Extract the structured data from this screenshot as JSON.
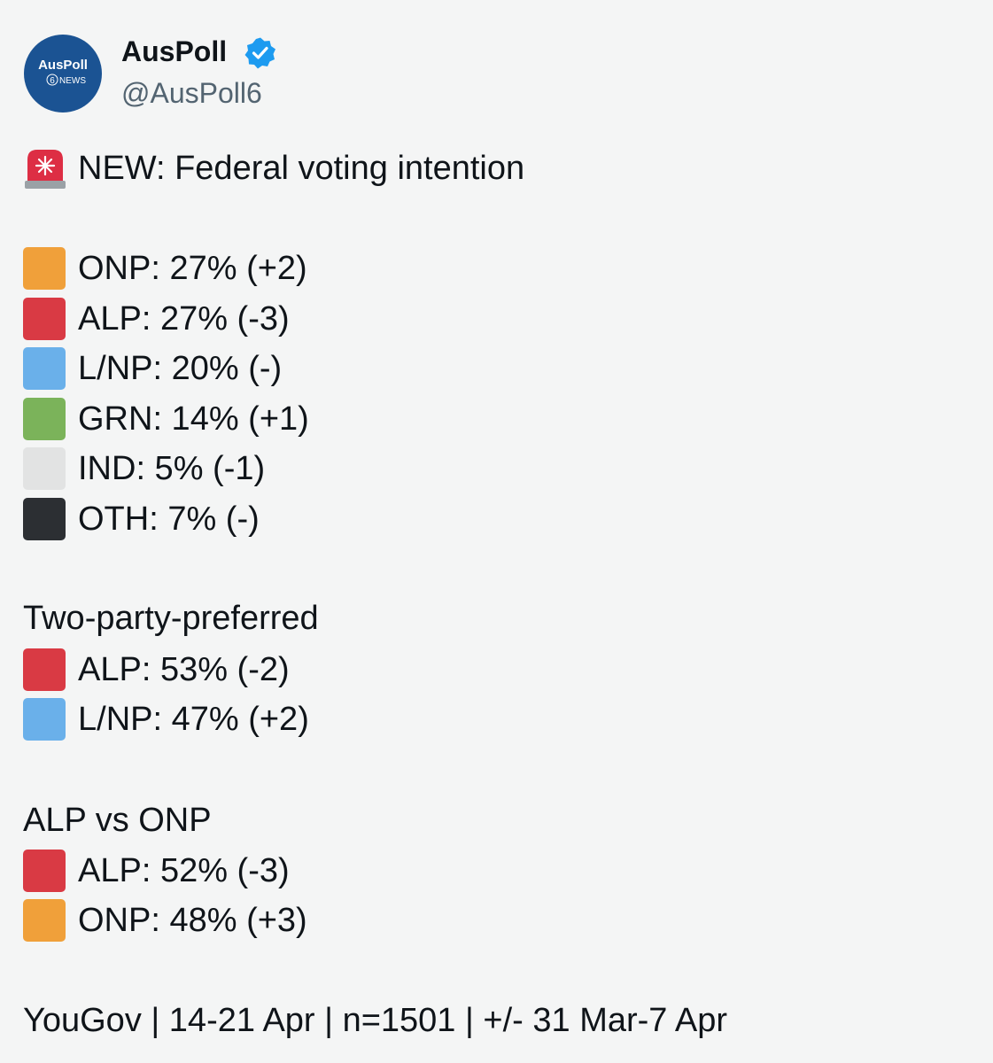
{
  "avatar": {
    "name": "AusPoll",
    "badge": "6",
    "sub": "NEWS"
  },
  "header": {
    "name": "AusPoll",
    "handle": "@AusPoll6"
  },
  "post": {
    "headline": "NEW: Federal voting intention",
    "groups": [
      {
        "items": [
          {
            "text": "ONP: 27% (+2)",
            "color": "#f0a03a"
          },
          {
            "text": "ALP: 27% (-3)",
            "color": "#d93a44"
          },
          {
            "text": "L/NP: 20% (-)",
            "color": "#6ab0ea"
          },
          {
            "text": "GRN: 14% (+1)",
            "color": "#7bb35a"
          },
          {
            "text": "IND: 5% (-1)",
            "color": "#e2e3e3"
          },
          {
            "text": "OTH: 7% (-)",
            "color": "#2c2f33"
          }
        ]
      },
      {
        "heading": "Two-party-preferred",
        "items": [
          {
            "text": "ALP: 53% (-2)",
            "color": "#d93a44"
          },
          {
            "text": "L/NP: 47% (+2)",
            "color": "#6ab0ea"
          }
        ]
      },
      {
        "heading": "ALP vs ONP",
        "items": [
          {
            "text": "ALP: 52% (-3)",
            "color": "#d93a44"
          },
          {
            "text": "ONP: 48% (+3)",
            "color": "#f0a03a"
          }
        ]
      }
    ],
    "footer": "YouGov | 14-21 Apr | n=1501 | +/- 31 Mar-7 Apr"
  }
}
